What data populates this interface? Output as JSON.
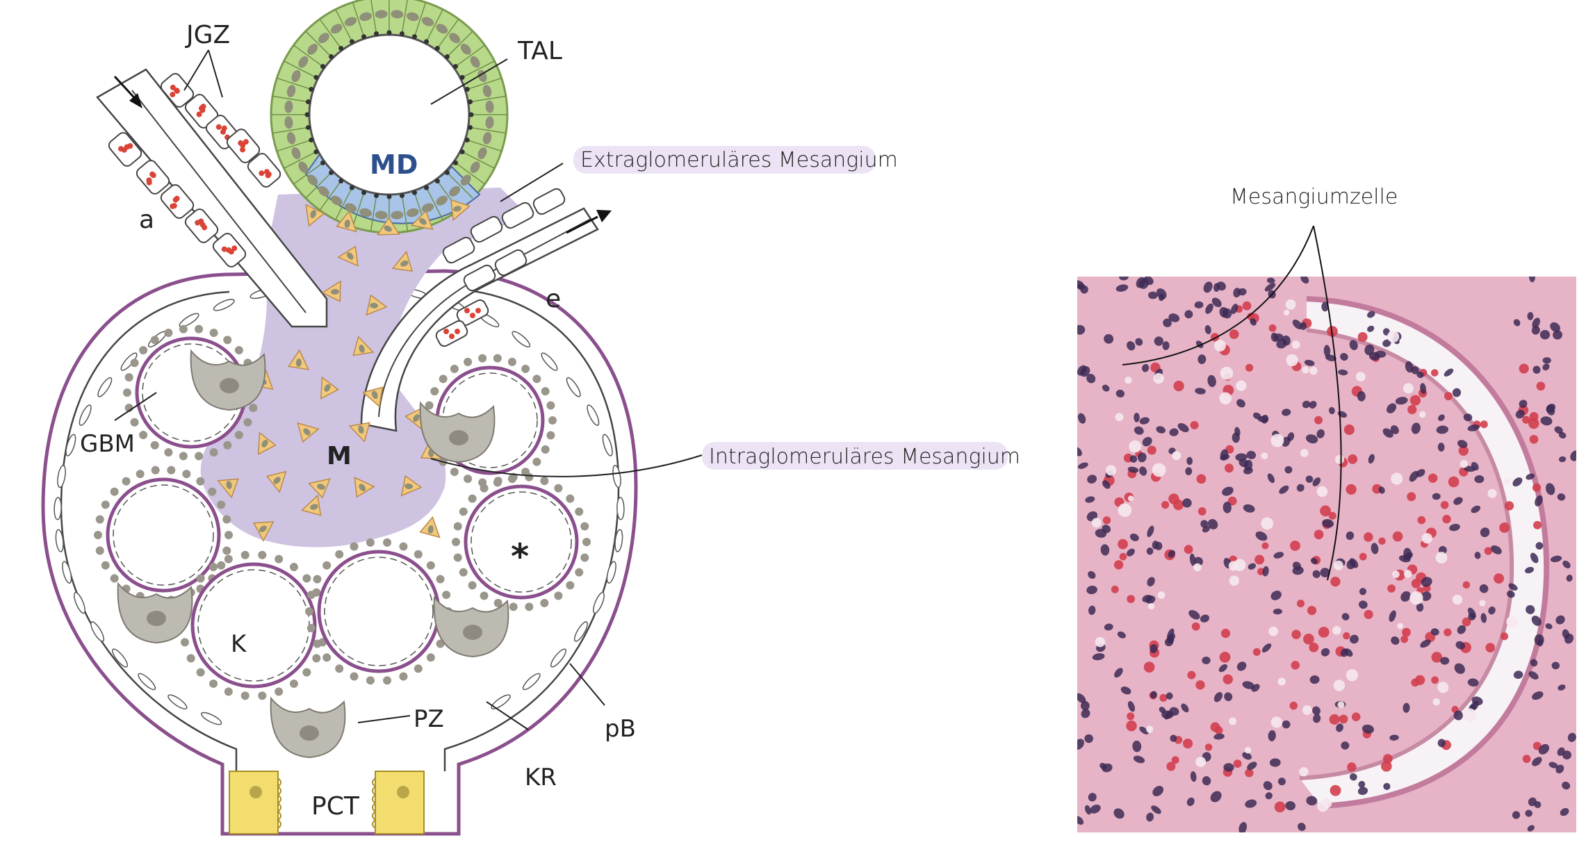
{
  "diagram": {
    "labels": {
      "jgz": "JGZ",
      "tal": "TAL",
      "md": "MD",
      "a": "a",
      "e": "e",
      "gbm": "GBM",
      "m": "M",
      "k": "K",
      "pz": "PZ",
      "pb": "pB",
      "kr": "KR",
      "pct": "PCT",
      "asterisk": "*"
    },
    "annotations": {
      "extraglomerular": "Extraglomeruläres Mesangium",
      "intraglomerular": "Intraglomeruläres Mesangium"
    }
  },
  "micrograph": {
    "label": "Mesangiumzelle"
  },
  "colors": {
    "capsule": "#8a4f8c",
    "mesangium": "#cfc3e2",
    "mesangial_cell": "#f2c87a",
    "tal_epithelium": "#b9d98a",
    "macula_densa": "#a8c4e8",
    "podocyte": "#bdbab2",
    "pct": "#f3dd6e",
    "rbc": "#d94436",
    "stain_pink": "#e7a9c0",
    "nucleus": "#3d2a55"
  }
}
